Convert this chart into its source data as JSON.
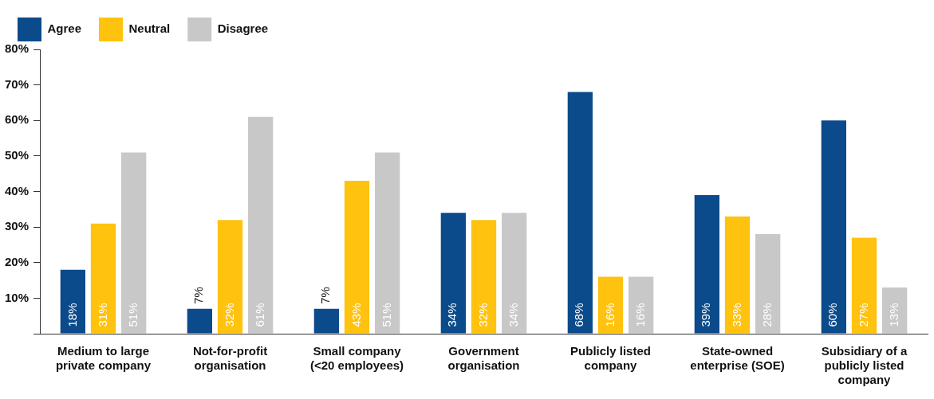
{
  "chart_data": {
    "type": "bar",
    "categories": [
      "Medium to large private company",
      "Not-for-profit organisation",
      "Small company (<20 employees)",
      "Government organisation",
      "Publicly listed company",
      "State-owned enterprise (SOE)",
      "Subsidiary of a publicly listed company"
    ],
    "series": [
      {
        "name": "Agree",
        "color": "#0b4a8b",
        "values": [
          18,
          7,
          7,
          34,
          68,
          39,
          60
        ],
        "value_labels": [
          "18%",
          "7%",
          "7%",
          "34%",
          "68%",
          "39%",
          "60%"
        ]
      },
      {
        "name": "Neutral",
        "color": "#ffc20e",
        "values": [
          31,
          32,
          43,
          32,
          16,
          33,
          27
        ],
        "value_labels": [
          "31%",
          "32%",
          "43%",
          "32%",
          "16%",
          "33%",
          "27%"
        ]
      },
      {
        "name": "Disagree",
        "color": "#c8c8c8",
        "values": [
          51,
          61,
          51,
          34,
          16,
          28,
          13
        ],
        "value_labels": [
          "51%",
          "61%",
          "51%",
          "34%",
          "16%",
          "28%",
          "13%"
        ]
      }
    ],
    "ylim": [
      0,
      80
    ],
    "yticks": [
      {
        "value": 0,
        "label": null
      },
      {
        "value": 10,
        "label": "10%"
      },
      {
        "value": 20,
        "label": "20%"
      },
      {
        "value": 30,
        "label": "30%"
      },
      {
        "value": 40,
        "label": "40%"
      },
      {
        "value": 50,
        "label": "50%"
      },
      {
        "value": 60,
        "label": "60%"
      },
      {
        "value": 70,
        "label": "70%"
      },
      {
        "value": 80,
        "label": "80%"
      }
    ],
    "grid": false,
    "legend": "top left"
  }
}
